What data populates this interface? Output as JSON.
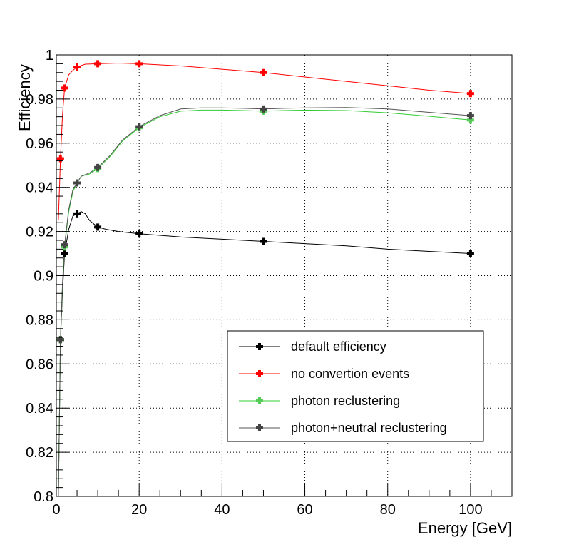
{
  "chart_data": {
    "type": "line",
    "title": "",
    "xlabel": "Energy [GeV]",
    "ylabel": "Efficiency",
    "xlim": [
      0,
      110
    ],
    "ylim": [
      0.8,
      1.0
    ],
    "x_ticks": [
      0,
      20,
      40,
      60,
      80,
      100
    ],
    "x_tick_labels": [
      "0",
      "20",
      "40",
      "60",
      "80",
      "100"
    ],
    "y_ticks": [
      0.8,
      0.82,
      0.84,
      0.86,
      0.88,
      0.9,
      0.92,
      0.94,
      0.96,
      0.98,
      1.0
    ],
    "y_tick_labels": [
      "0.8",
      "0.82",
      "0.84",
      "0.86",
      "0.88",
      "0.9",
      "0.92",
      "0.94",
      "0.96",
      "0.98",
      "1"
    ],
    "grid": true,
    "legend_position": "bottom-right",
    "series": [
      {
        "name": "default efficiency",
        "color": "#000000",
        "marker_color": "#000000",
        "x": [
          1,
          2,
          5,
          10,
          20,
          50,
          100
        ],
        "y": [
          0.871,
          0.91,
          0.928,
          0.922,
          0.919,
          0.9155,
          0.91
        ],
        "curve": [
          [
            0.5,
            0.8
          ],
          [
            1,
            0.871
          ],
          [
            1.5,
            0.893
          ],
          [
            2,
            0.91
          ],
          [
            3,
            0.921
          ],
          [
            4,
            0.927
          ],
          [
            5,
            0.928
          ],
          [
            6,
            0.929
          ],
          [
            7,
            0.928
          ],
          [
            8,
            0.925
          ],
          [
            10,
            0.922
          ],
          [
            12,
            0.921
          ],
          [
            15,
            0.92
          ],
          [
            20,
            0.919
          ],
          [
            30,
            0.9175
          ],
          [
            40,
            0.9165
          ],
          [
            50,
            0.9155
          ],
          [
            60,
            0.9145
          ],
          [
            70,
            0.9135
          ],
          [
            80,
            0.912
          ],
          [
            90,
            0.911
          ],
          [
            100,
            0.91
          ]
        ]
      },
      {
        "name": "no convertion events",
        "color": "#ff0000",
        "marker_color": "#ff0000",
        "x": [
          1,
          2,
          5,
          10,
          20,
          50,
          100
        ],
        "y": [
          0.953,
          0.985,
          0.9945,
          0.996,
          0.996,
          0.992,
          0.9825
        ],
        "curve": [
          [
            0.5,
            0.925
          ],
          [
            1,
            0.953
          ],
          [
            1.5,
            0.973
          ],
          [
            2,
            0.985
          ],
          [
            3,
            0.991
          ],
          [
            4,
            0.993
          ],
          [
            5,
            0.9945
          ],
          [
            7,
            0.9958
          ],
          [
            10,
            0.996
          ],
          [
            15,
            0.9963
          ],
          [
            20,
            0.996
          ],
          [
            30,
            0.995
          ],
          [
            40,
            0.9935
          ],
          [
            50,
            0.992
          ],
          [
            60,
            0.99
          ],
          [
            70,
            0.988
          ],
          [
            80,
            0.986
          ],
          [
            90,
            0.984
          ],
          [
            100,
            0.9825
          ]
        ]
      },
      {
        "name": "photon reclustering",
        "color": "#33cc33",
        "marker_color": "#55cc55",
        "x": [
          1,
          2,
          5,
          10,
          20,
          50,
          100
        ],
        "y": [
          0.871,
          0.913,
          0.942,
          0.9485,
          0.967,
          0.9745,
          0.9705
        ],
        "curve": [
          [
            0.5,
            0.8
          ],
          [
            1,
            0.871
          ],
          [
            1.5,
            0.896
          ],
          [
            2,
            0.913
          ],
          [
            3,
            0.929
          ],
          [
            4,
            0.938
          ],
          [
            5,
            0.942
          ],
          [
            6,
            0.945
          ],
          [
            8,
            0.946
          ],
          [
            10,
            0.9485
          ],
          [
            13,
            0.954
          ],
          [
            16,
            0.961
          ],
          [
            20,
            0.967
          ],
          [
            25,
            0.972
          ],
          [
            30,
            0.9745
          ],
          [
            35,
            0.975
          ],
          [
            40,
            0.975
          ],
          [
            45,
            0.9748
          ],
          [
            50,
            0.9745
          ],
          [
            55,
            0.9748
          ],
          [
            60,
            0.975
          ],
          [
            70,
            0.9748
          ],
          [
            80,
            0.9738
          ],
          [
            90,
            0.9722
          ],
          [
            100,
            0.9705
          ]
        ]
      },
      {
        "name": "photon+neutral reclustering",
        "color": "#555555",
        "marker_color": "#444444",
        "x": [
          1,
          2,
          5,
          10,
          20,
          50,
          100
        ],
        "y": [
          0.871,
          0.914,
          0.942,
          0.949,
          0.9675,
          0.9755,
          0.9725
        ],
        "curve": [
          [
            0.5,
            0.8
          ],
          [
            1,
            0.871
          ],
          [
            1.5,
            0.897
          ],
          [
            2,
            0.914
          ],
          [
            3,
            0.93
          ],
          [
            4,
            0.939
          ],
          [
            5,
            0.942
          ],
          [
            6,
            0.945
          ],
          [
            8,
            0.9465
          ],
          [
            10,
            0.949
          ],
          [
            13,
            0.9545
          ],
          [
            16,
            0.9615
          ],
          [
            20,
            0.9675
          ],
          [
            25,
            0.9725
          ],
          [
            30,
            0.9755
          ],
          [
            35,
            0.976
          ],
          [
            40,
            0.976
          ],
          [
            45,
            0.9758
          ],
          [
            50,
            0.9755
          ],
          [
            55,
            0.9758
          ],
          [
            60,
            0.976
          ],
          [
            70,
            0.9762
          ],
          [
            80,
            0.9755
          ],
          [
            90,
            0.974
          ],
          [
            100,
            0.9725
          ]
        ]
      }
    ]
  }
}
